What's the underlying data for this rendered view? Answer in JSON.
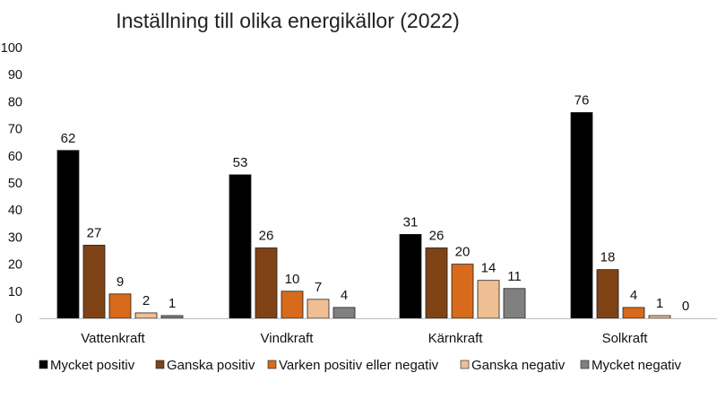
{
  "chart_data": {
    "type": "bar",
    "title": "Inställning till olika energikällor (2022)",
    "xlabel": "",
    "ylabel": "",
    "ylim": [
      0,
      100
    ],
    "yticks": [
      "0",
      "10",
      "20",
      "30",
      "40",
      "50",
      "60",
      "70",
      "80",
      "90",
      "100"
    ],
    "grid": false,
    "legend_position": "bottom",
    "categories": [
      "Vattenkraft",
      "Vindkraft",
      "Kärnkraft",
      "Solkraft"
    ],
    "series": [
      {
        "name": "Mycket positiv",
        "color": "#000000",
        "values": [
          62,
          53,
          31,
          76
        ]
      },
      {
        "name": "Ganska positiv",
        "color": "#7f4316",
        "values": [
          27,
          26,
          26,
          18
        ]
      },
      {
        "name": "Varken positiv eller negativ",
        "color": "#d86a1c",
        "values": [
          9,
          10,
          20,
          4
        ]
      },
      {
        "name": "Ganska negativ",
        "color": "#efbf93",
        "values": [
          2,
          7,
          14,
          1
        ]
      },
      {
        "name": "Mycket negativ",
        "color": "#808080",
        "values": [
          1,
          4,
          11,
          0
        ]
      }
    ],
    "data_labels": [
      [
        "62",
        "27",
        "9",
        "2",
        "1"
      ],
      [
        "53",
        "26",
        "10",
        "7",
        "4"
      ],
      [
        "31",
        "26",
        "20",
        "14",
        "11"
      ],
      [
        "76",
        "18",
        "4",
        "1",
        "0"
      ]
    ]
  }
}
